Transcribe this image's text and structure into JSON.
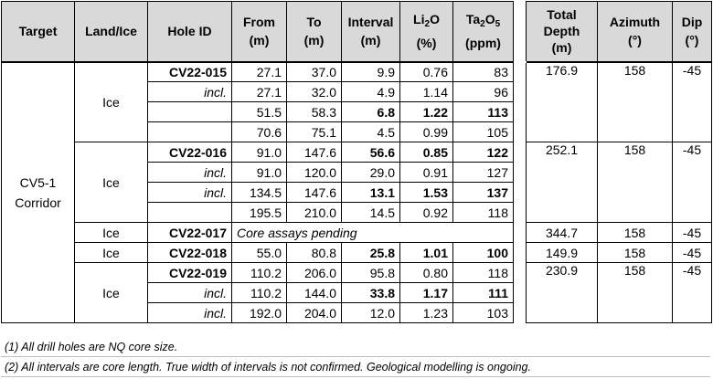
{
  "headers": {
    "target": "Target",
    "land_ice": "Land/Ice",
    "hole_id": "Hole ID",
    "from_1": "From",
    "from_2": "(m)",
    "to_1": "To",
    "to_2": "(m)",
    "interval_1": "Interval",
    "interval_2": "(m)",
    "li2o_base": "Li",
    "li2o_sub": "2",
    "li2o_end": "O",
    "li2o_unit": "(%)",
    "ta2o5_a": "Ta",
    "ta2o5_sub1": "2",
    "ta2o5_b": "O",
    "ta2o5_sub2": "5",
    "ta2o5_unit": "(ppm)",
    "total_1": "Total",
    "total_2": "Depth",
    "total_3": "(m)",
    "azimuth_1": "Azimuth",
    "azimuth_2": "(°)",
    "dip_1": "Dip",
    "dip_2": "(°)"
  },
  "target": {
    "line1": "CV5-1",
    "line2": "Corridor"
  },
  "land_ice": "Ice",
  "rows": [
    {
      "hole": "CV22-015",
      "from": "27.1",
      "to": "37.0",
      "interval": "9.9",
      "li2o": "0.76",
      "ta2o5": "83"
    },
    {
      "hole": "incl.",
      "from": "27.1",
      "to": "32.0",
      "interval": "4.9",
      "li2o": "1.14",
      "ta2o5": "96"
    },
    {
      "hole": "",
      "from": "51.5",
      "to": "58.3",
      "interval": "6.8",
      "li2o": "1.22",
      "ta2o5": "113"
    },
    {
      "hole": "",
      "from": "70.6",
      "to": "75.1",
      "interval": "4.5",
      "li2o": "0.99",
      "ta2o5": "105"
    },
    {
      "hole": "CV22-016",
      "from": "91.0",
      "to": "147.6",
      "interval": "56.6",
      "li2o": "0.85",
      "ta2o5": "122"
    },
    {
      "hole": "incl.",
      "from": "91.0",
      "to": "120.0",
      "interval": "29.0",
      "li2o": "0.91",
      "ta2o5": "127"
    },
    {
      "hole": "incl.",
      "from": "134.5",
      "to": "147.6",
      "interval": "13.1",
      "li2o": "1.53",
      "ta2o5": "137"
    },
    {
      "hole": "",
      "from": "195.5",
      "to": "210.0",
      "interval": "14.5",
      "li2o": "0.92",
      "ta2o5": "118"
    },
    {
      "hole": "CV22-017",
      "pending": "Core assays pending"
    },
    {
      "hole": "CV22-018",
      "from": "55.0",
      "to": "80.8",
      "interval": "25.8",
      "li2o": "1.01",
      "ta2o5": "100"
    },
    {
      "hole": "CV22-019",
      "from": "110.2",
      "to": "206.0",
      "interval": "95.8",
      "li2o": "0.80",
      "ta2o5": "118"
    },
    {
      "hole": "incl.",
      "from": "110.2",
      "to": "144.0",
      "interval": "33.8",
      "li2o": "1.17",
      "ta2o5": "111"
    },
    {
      "hole": "incl.",
      "from": "192.0",
      "to": "204.0",
      "interval": "12.0",
      "li2o": "1.23",
      "ta2o5": "103"
    }
  ],
  "holes": [
    {
      "total_depth": "176.9",
      "azimuth": "158",
      "dip": "-45"
    },
    {
      "total_depth": "252.1",
      "azimuth": "158",
      "dip": "-45"
    },
    {
      "total_depth": "344.7",
      "azimuth": "158",
      "dip": "-45"
    },
    {
      "total_depth": "149.9",
      "azimuth": "158",
      "dip": "-45"
    },
    {
      "total_depth": "230.9",
      "azimuth": "158",
      "dip": "-45"
    }
  ],
  "notes": [
    "(1) All drill holes are NQ core size.",
    "(2) All intervals are core length. True width of intervals is not confirmed. Geological modelling is ongoing."
  ]
}
